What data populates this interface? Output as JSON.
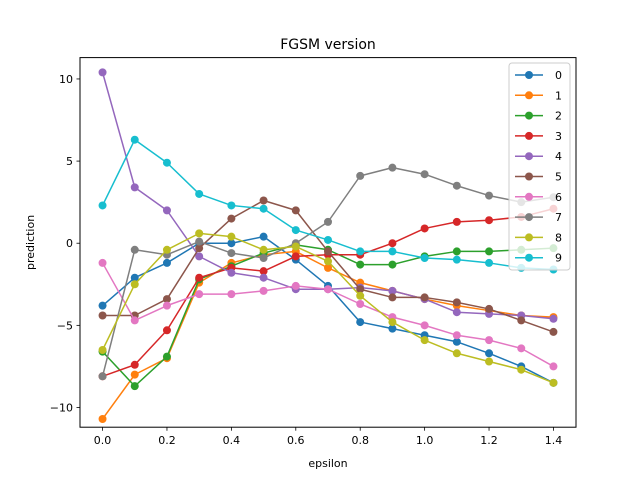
{
  "chart_data": {
    "type": "line",
    "title": "FGSM version",
    "xlabel": "epsilon",
    "ylabel": "prediction",
    "xlim": [
      -0.07,
      1.47
    ],
    "ylim": [
      -11.2,
      11.3
    ],
    "x_ticks": [
      0.0,
      0.2,
      0.4,
      0.6,
      0.8,
      1.0,
      1.2,
      1.4
    ],
    "x_tick_labels": [
      "0.0",
      "0.2",
      "0.4",
      "0.6",
      "0.8",
      "1.0",
      "1.2",
      "1.4"
    ],
    "y_ticks": [
      -10,
      -5,
      0,
      5,
      10
    ],
    "y_tick_labels": [
      "−10",
      "−5",
      "0",
      "5",
      "10"
    ],
    "grid": false,
    "legend_position": "top-right",
    "x": [
      0.0,
      0.1,
      0.2,
      0.3,
      0.4,
      0.5,
      0.6,
      0.7,
      0.8,
      0.9,
      1.0,
      1.1,
      1.2,
      1.3,
      1.4
    ],
    "series": [
      {
        "name": "0",
        "color": "#1f77b4",
        "values": [
          -3.8,
          -2.1,
          -1.2,
          0.0,
          0.0,
          0.4,
          -1.0,
          -2.6,
          -4.8,
          -5.2,
          -5.6,
          -6.0,
          -6.7,
          -7.5,
          -8.5
        ]
      },
      {
        "name": "1",
        "color": "#ff7f0e",
        "values": [
          -10.7,
          -8.0,
          -7.0,
          -2.4,
          -1.2,
          -0.7,
          -0.5,
          -1.5,
          -2.4,
          -2.9,
          -3.4,
          -3.8,
          -4.1,
          -4.4,
          -4.5
        ]
      },
      {
        "name": "2",
        "color": "#2ca02c",
        "values": [
          -6.6,
          -8.7,
          -6.9,
          -2.2,
          -1.4,
          -0.6,
          -0.1,
          -0.4,
          -1.3,
          -1.3,
          -0.8,
          -0.5,
          -0.5,
          -0.4,
          -0.3
        ]
      },
      {
        "name": "3",
        "color": "#d62728",
        "values": [
          -8.1,
          -7.4,
          -5.3,
          -2.1,
          -1.5,
          -1.7,
          -0.8,
          -0.7,
          -0.7,
          0.0,
          0.9,
          1.3,
          1.4,
          1.6,
          2.1
        ]
      },
      {
        "name": "4",
        "color": "#9467bd",
        "values": [
          10.4,
          3.4,
          2.0,
          -0.8,
          -1.8,
          -2.1,
          -2.8,
          -2.8,
          -2.7,
          -2.9,
          -3.4,
          -4.2,
          -4.3,
          -4.4,
          -4.6
        ]
      },
      {
        "name": "5",
        "color": "#8c564b",
        "values": [
          -4.4,
          -4.4,
          -3.4,
          -0.3,
          1.5,
          2.6,
          2.0,
          -0.5,
          -2.8,
          -3.3,
          -3.3,
          -3.6,
          -4.0,
          -4.7,
          -5.4
        ]
      },
      {
        "name": "6",
        "color": "#e377c2",
        "values": [
          -1.2,
          -4.7,
          -3.8,
          -3.1,
          -3.1,
          -2.9,
          -2.6,
          -2.8,
          -3.7,
          -4.5,
          -5.0,
          -5.6,
          -5.9,
          -6.4,
          -7.5
        ]
      },
      {
        "name": "7",
        "color": "#7f7f7f",
        "values": [
          -8.1,
          -0.4,
          -0.7,
          0.1,
          -0.6,
          -0.9,
          0.0,
          1.3,
          4.1,
          4.6,
          4.2,
          3.5,
          2.9,
          2.5,
          2.8
        ]
      },
      {
        "name": "8",
        "color": "#bcbd22",
        "values": [
          -6.5,
          -2.5,
          -0.4,
          0.6,
          0.4,
          -0.4,
          -0.2,
          -1.1,
          -3.2,
          -4.8,
          -5.9,
          -6.7,
          -7.2,
          -7.7,
          -8.5
        ]
      },
      {
        "name": "9",
        "color": "#17becf",
        "values": [
          2.3,
          6.3,
          4.9,
          3.0,
          2.3,
          2.1,
          0.8,
          0.2,
          -0.5,
          -0.5,
          -0.9,
          -1.0,
          -1.2,
          -1.5,
          -1.6
        ]
      }
    ]
  }
}
